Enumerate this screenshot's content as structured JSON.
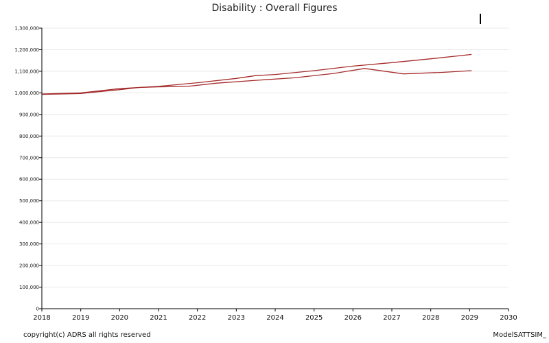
{
  "footer": {
    "copyright": "copyright(c) ADRS all rights reserved",
    "model": "ModelSATTSIM_"
  },
  "chart_data": {
    "type": "line",
    "title": "Disability : Overall Figures",
    "xlabel": "",
    "ylabel": "",
    "xlim": [
      2018,
      2030
    ],
    "ylim": [
      0,
      1300000
    ],
    "grid": true,
    "x_ticks": [
      2018,
      2019,
      2020,
      2021,
      2022,
      2023,
      2024,
      2025,
      2026,
      2027,
      2028,
      2029,
      2030
    ],
    "y_ticks": [
      0,
      100000,
      200000,
      300000,
      400000,
      500000,
      600000,
      700000,
      800000,
      900000,
      1000000,
      1100000,
      1200000,
      1300000
    ],
    "y_tick_labels": [
      "0",
      "100,000",
      "200,000",
      "300,000",
      "400,000",
      "500,000",
      "600,000",
      "700,000",
      "800,000",
      "900,000",
      "1,000,000",
      "1,100,000",
      "1,200,000",
      "1,300,000"
    ],
    "series": [
      {
        "color": "#a52a2a",
        "x": [
          2018.0,
          2019.0,
          2020.0,
          2021.0,
          2022.0,
          2023.0,
          2023.5,
          2024.0,
          2025.0,
          2026.0,
          2027.0,
          2028.0,
          2029.05
        ],
        "values": [
          995000,
          1000000,
          1020000,
          1030000,
          1047000,
          1067000,
          1080000,
          1085000,
          1103000,
          1124000,
          1140000,
          1158000,
          1178000
        ]
      },
      {
        "color": "#a52a2a",
        "x": [
          2018.0,
          2019.0,
          2020.0,
          2020.5,
          2021.0,
          2021.75,
          2022.5,
          2023.5,
          2024.5,
          2025.5,
          2026.3,
          2027.3,
          2028.3,
          2029.05
        ],
        "values": [
          993000,
          997000,
          1015000,
          1025000,
          1028000,
          1030000,
          1045000,
          1058000,
          1070000,
          1090000,
          1113000,
          1088000,
          1095000,
          1103000
        ]
      }
    ]
  }
}
